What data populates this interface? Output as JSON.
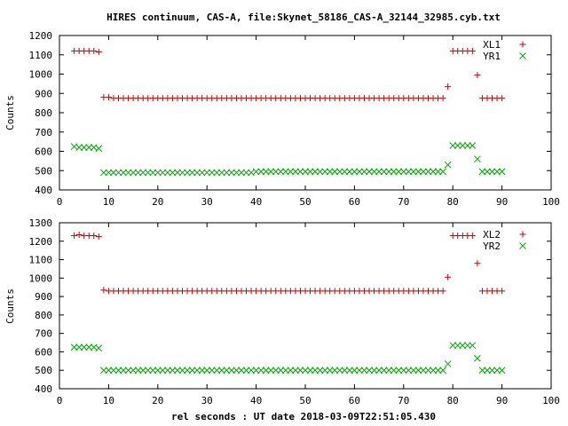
{
  "title": "HIRES continuum, CAS-A, file:Skynet_58186_CAS-A_32144_32985.cyb.txt",
  "xlabel": "rel seconds : UT date 2018-03-09T22:51:05.430",
  "colors": {
    "xl": "#cc0000",
    "yr": "#00aa00"
  },
  "chart_data": [
    {
      "type": "scatter",
      "ylabel": "Counts",
      "xlim": [
        0,
        100
      ],
      "ylim": [
        400,
        1200
      ],
      "x_ticks": [
        "0",
        "10",
        "20",
        "30",
        "40",
        "50",
        "60",
        "70",
        "80",
        "90",
        "100"
      ],
      "y_ticks": [
        "400",
        "500",
        "600",
        "700",
        "800",
        "900",
        "1000",
        "1100",
        "1200"
      ],
      "legend_position": "top-right",
      "series": [
        {
          "name": "XL1",
          "marker": "plus",
          "color": "#cc0000",
          "x": [
            3,
            4,
            5,
            6,
            7,
            8,
            9,
            10,
            11,
            12,
            13,
            14,
            15,
            16,
            17,
            18,
            19,
            20,
            21,
            22,
            23,
            24,
            25,
            26,
            27,
            28,
            29,
            30,
            31,
            32,
            33,
            34,
            35,
            36,
            37,
            38,
            39,
            40,
            41,
            42,
            43,
            44,
            45,
            46,
            47,
            48,
            49,
            50,
            51,
            52,
            53,
            54,
            55,
            56,
            57,
            58,
            59,
            60,
            61,
            62,
            63,
            64,
            65,
            66,
            67,
            68,
            69,
            70,
            71,
            72,
            73,
            74,
            75,
            76,
            77,
            78,
            79,
            80,
            81,
            82,
            83,
            84,
            85,
            86,
            87,
            88,
            89,
            90
          ],
          "y": [
            1120,
            1120,
            1120,
            1120,
            1120,
            1115,
            880,
            880,
            875,
            875,
            875,
            875,
            875,
            875,
            875,
            875,
            875,
            875,
            875,
            875,
            875,
            875,
            875,
            875,
            875,
            875,
            875,
            875,
            875,
            875,
            875,
            875,
            875,
            875,
            875,
            875,
            875,
            875,
            875,
            875,
            875,
            875,
            875,
            875,
            875,
            875,
            875,
            875,
            875,
            875,
            875,
            875,
            875,
            875,
            875,
            875,
            875,
            875,
            875,
            875,
            875,
            875,
            875,
            875,
            875,
            875,
            875,
            875,
            875,
            875,
            875,
            875,
            875,
            875,
            875,
            875,
            935,
            1120,
            1120,
            1120,
            1120,
            1120,
            995,
            875,
            875,
            875,
            875,
            875
          ]
        },
        {
          "name": "YR1",
          "marker": "cross",
          "color": "#00aa00",
          "x": [
            3,
            4,
            5,
            6,
            7,
            8,
            9,
            10,
            11,
            12,
            13,
            14,
            15,
            16,
            17,
            18,
            19,
            20,
            21,
            22,
            23,
            24,
            25,
            26,
            27,
            28,
            29,
            30,
            31,
            32,
            33,
            34,
            35,
            36,
            37,
            38,
            39,
            40,
            41,
            42,
            43,
            44,
            45,
            46,
            47,
            48,
            49,
            50,
            51,
            52,
            53,
            54,
            55,
            56,
            57,
            58,
            59,
            60,
            61,
            62,
            63,
            64,
            65,
            66,
            67,
            68,
            69,
            70,
            71,
            72,
            73,
            74,
            75,
            76,
            77,
            78,
            79,
            80,
            81,
            82,
            83,
            84,
            85,
            86,
            87,
            88,
            89,
            90
          ],
          "y": [
            625,
            620,
            620,
            620,
            620,
            615,
            490,
            490,
            490,
            490,
            490,
            490,
            490,
            490,
            490,
            490,
            490,
            490,
            490,
            490,
            490,
            490,
            490,
            490,
            490,
            490,
            490,
            490,
            490,
            490,
            490,
            490,
            490,
            490,
            490,
            490,
            490,
            495,
            495,
            495,
            495,
            495,
            495,
            495,
            495,
            495,
            495,
            495,
            495,
            495,
            495,
            495,
            495,
            495,
            495,
            495,
            495,
            495,
            495,
            495,
            495,
            495,
            495,
            495,
            495,
            495,
            495,
            495,
            495,
            495,
            495,
            495,
            495,
            495,
            495,
            495,
            530,
            630,
            630,
            630,
            630,
            630,
            560,
            495,
            495,
            495,
            495,
            495
          ]
        }
      ]
    },
    {
      "type": "scatter",
      "ylabel": "Counts",
      "xlim": [
        0,
        100
      ],
      "ylim": [
        400,
        1300
      ],
      "x_ticks": [
        "0",
        "10",
        "20",
        "30",
        "40",
        "50",
        "60",
        "70",
        "80",
        "90",
        "100"
      ],
      "y_ticks": [
        "400",
        "500",
        "600",
        "700",
        "800",
        "900",
        "1000",
        "1100",
        "1200",
        "1300"
      ],
      "legend_position": "top-right",
      "series": [
        {
          "name": "XL2",
          "marker": "plus",
          "color": "#cc0000",
          "x": [
            3,
            4,
            5,
            6,
            7,
            8,
            9,
            10,
            11,
            12,
            13,
            14,
            15,
            16,
            17,
            18,
            19,
            20,
            21,
            22,
            23,
            24,
            25,
            26,
            27,
            28,
            29,
            30,
            31,
            32,
            33,
            34,
            35,
            36,
            37,
            38,
            39,
            40,
            41,
            42,
            43,
            44,
            45,
            46,
            47,
            48,
            49,
            50,
            51,
            52,
            53,
            54,
            55,
            56,
            57,
            58,
            59,
            60,
            61,
            62,
            63,
            64,
            65,
            66,
            67,
            68,
            69,
            70,
            71,
            72,
            73,
            74,
            75,
            76,
            77,
            78,
            79,
            80,
            81,
            82,
            83,
            84,
            85,
            86,
            87,
            88,
            89,
            90
          ],
          "y": [
            1230,
            1235,
            1230,
            1230,
            1230,
            1225,
            935,
            930,
            930,
            930,
            930,
            930,
            930,
            930,
            930,
            930,
            930,
            930,
            930,
            930,
            930,
            930,
            930,
            930,
            930,
            930,
            930,
            930,
            930,
            930,
            930,
            930,
            930,
            930,
            930,
            930,
            930,
            930,
            930,
            930,
            930,
            930,
            930,
            930,
            930,
            930,
            930,
            930,
            930,
            930,
            930,
            930,
            930,
            930,
            930,
            930,
            930,
            930,
            930,
            930,
            930,
            930,
            930,
            930,
            930,
            930,
            930,
            930,
            930,
            930,
            930,
            930,
            930,
            930,
            930,
            930,
            1005,
            1230,
            1230,
            1230,
            1230,
            1230,
            1080,
            930,
            930,
            930,
            930,
            930
          ]
        },
        {
          "name": "YR2",
          "marker": "cross",
          "color": "#00aa00",
          "x": [
            3,
            4,
            5,
            6,
            7,
            8,
            9,
            10,
            11,
            12,
            13,
            14,
            15,
            16,
            17,
            18,
            19,
            20,
            21,
            22,
            23,
            24,
            25,
            26,
            27,
            28,
            29,
            30,
            31,
            32,
            33,
            34,
            35,
            36,
            37,
            38,
            39,
            40,
            41,
            42,
            43,
            44,
            45,
            46,
            47,
            48,
            49,
            50,
            51,
            52,
            53,
            54,
            55,
            56,
            57,
            58,
            59,
            60,
            61,
            62,
            63,
            64,
            65,
            66,
            67,
            68,
            69,
            70,
            71,
            72,
            73,
            74,
            75,
            76,
            77,
            78,
            79,
            80,
            81,
            82,
            83,
            84,
            85,
            86,
            87,
            88,
            89,
            90
          ],
          "y": [
            625,
            625,
            625,
            625,
            625,
            620,
            500,
            500,
            500,
            500,
            500,
            500,
            500,
            500,
            500,
            500,
            500,
            500,
            500,
            500,
            500,
            500,
            500,
            500,
            500,
            500,
            500,
            500,
            500,
            500,
            500,
            500,
            500,
            500,
            500,
            500,
            500,
            500,
            500,
            500,
            500,
            500,
            500,
            500,
            500,
            500,
            500,
            500,
            500,
            500,
            500,
            500,
            500,
            500,
            500,
            500,
            500,
            500,
            500,
            500,
            500,
            500,
            500,
            500,
            500,
            500,
            500,
            500,
            500,
            500,
            500,
            500,
            500,
            500,
            500,
            500,
            535,
            635,
            635,
            635,
            635,
            635,
            565,
            500,
            500,
            500,
            500,
            500
          ]
        }
      ]
    }
  ]
}
